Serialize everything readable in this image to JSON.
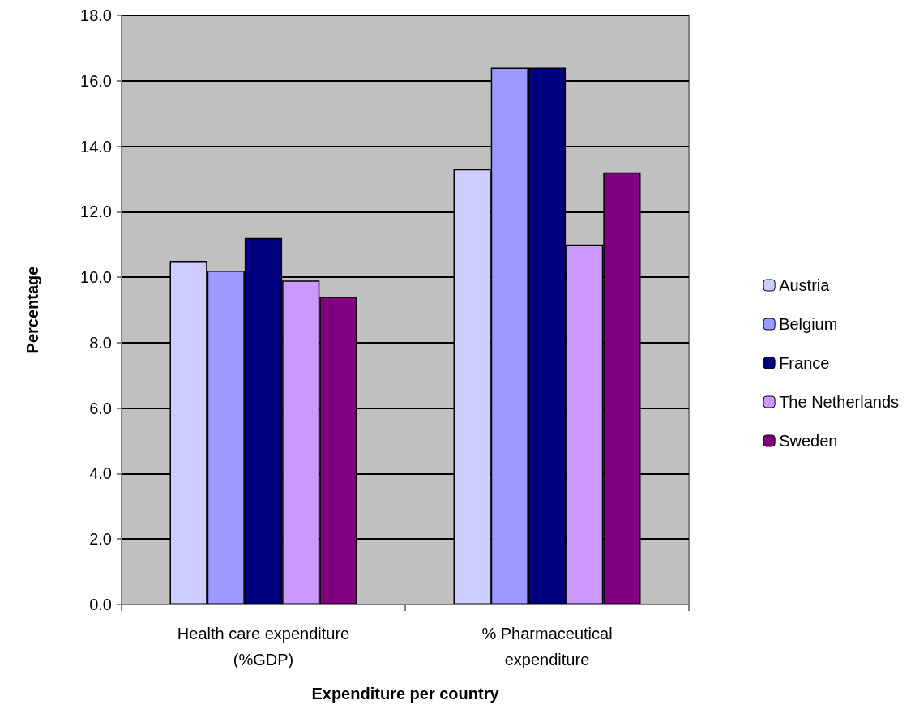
{
  "chart_data": {
    "type": "bar",
    "xlabel": "Expenditure per country",
    "ylabel": "Percentage",
    "categories": [
      "Health care expenditure\n(%GDP)",
      "% Pharmaceutical\nexpenditure"
    ],
    "series": [
      {
        "name": "Austria",
        "color": "#ccccff",
        "values": [
          10.5,
          13.3
        ]
      },
      {
        "name": "Belgium",
        "color": "#9999ff",
        "values": [
          10.2,
          16.4
        ]
      },
      {
        "name": "France",
        "color": "#000080",
        "values": [
          11.2,
          16.4
        ]
      },
      {
        "name": "The Netherlands",
        "color": "#cc99ff",
        "values": [
          9.9,
          11.0
        ]
      },
      {
        "name": "Sweden",
        "color": "#800080",
        "values": [
          9.4,
          13.2
        ]
      }
    ],
    "ylim": [
      0,
      18
    ],
    "yticks": [
      {
        "value": 0,
        "label": "0.0"
      },
      {
        "value": 2,
        "label": "2.0"
      },
      {
        "value": 4,
        "label": "4.0"
      },
      {
        "value": 6,
        "label": "6.0"
      },
      {
        "value": 8,
        "label": "8.0"
      },
      {
        "value": 10,
        "label": "10.0"
      },
      {
        "value": 12,
        "label": "12.0"
      },
      {
        "value": 14,
        "label": "14.0"
      },
      {
        "value": 16,
        "label": "16.0"
      },
      {
        "value": 18,
        "label": "18.0"
      }
    ],
    "grid": "y",
    "legend": "right"
  }
}
